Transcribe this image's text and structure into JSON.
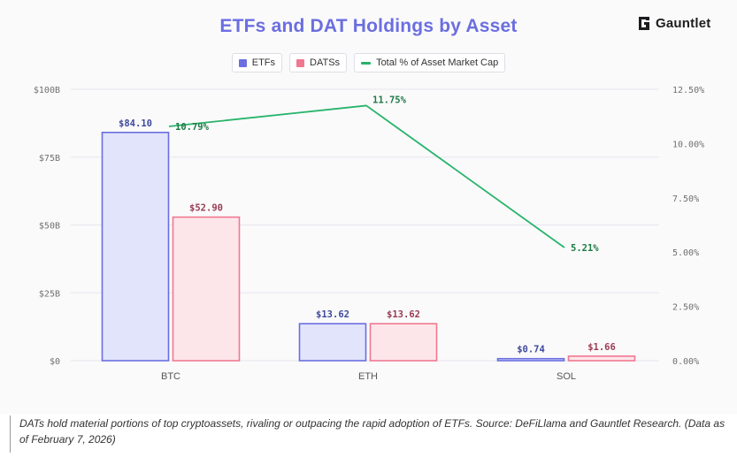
{
  "header": {
    "brand_name": "Gauntlet"
  },
  "legend": {
    "etf_label": "ETFs",
    "dat_label": "DATSs",
    "pct_label": "Total % of Asset Market Cap"
  },
  "caption": "DATs hold material portions of top cryptoassets, rivaling or outpacing the rapid adoption of ETFs. Source: DeFiLlama and Gauntlet Research. (Data as of February 7, 2026)",
  "colors": {
    "title": "#6b6ee0",
    "etf_fill": "#e2e4fb",
    "etf_stroke": "#6b6ee0",
    "etf_label": "#3f4a9a",
    "dat_fill": "#fde6ea",
    "dat_stroke": "#f07890",
    "dat_label": "#9a3b52",
    "line": "#27b46a",
    "line_label": "#1f7a45",
    "grid": "#e6e6ee"
  },
  "chart_data": {
    "type": "bar",
    "title": "ETFs and DAT Holdings by Asset",
    "categories": [
      "BTC",
      "ETH",
      "SOL"
    ],
    "series": [
      {
        "name": "ETFs",
        "values": [
          84.1,
          13.62,
          0.74
        ],
        "labels": [
          "$84.10",
          "$13.62",
          "$0.74"
        ]
      },
      {
        "name": "DATSs",
        "values": [
          52.9,
          13.62,
          1.66
        ],
        "labels": [
          "$52.90",
          "$13.62",
          "$1.66"
        ]
      }
    ],
    "line_series": {
      "name": "Total % of Asset Market Cap",
      "values": [
        10.79,
        11.75,
        5.21
      ],
      "labels": [
        "10.79%",
        "11.75%",
        "5.21%"
      ],
      "axis": "right"
    },
    "y_left": {
      "min": 0,
      "max": 100,
      "ticks": [
        "$0",
        "$25B",
        "$50B",
        "$75B",
        "$100B"
      ],
      "tick_values": [
        0,
        25,
        50,
        75,
        100
      ]
    },
    "y_right": {
      "min": 0,
      "max": 12.5,
      "ticks": [
        "0.00%",
        "2.50%",
        "5.00%",
        "7.50%",
        "10.00%",
        "12.50%"
      ],
      "tick_values": [
        0,
        2.5,
        5,
        7.5,
        10,
        12.5
      ]
    },
    "grid": true,
    "legend_position": "top-center"
  }
}
